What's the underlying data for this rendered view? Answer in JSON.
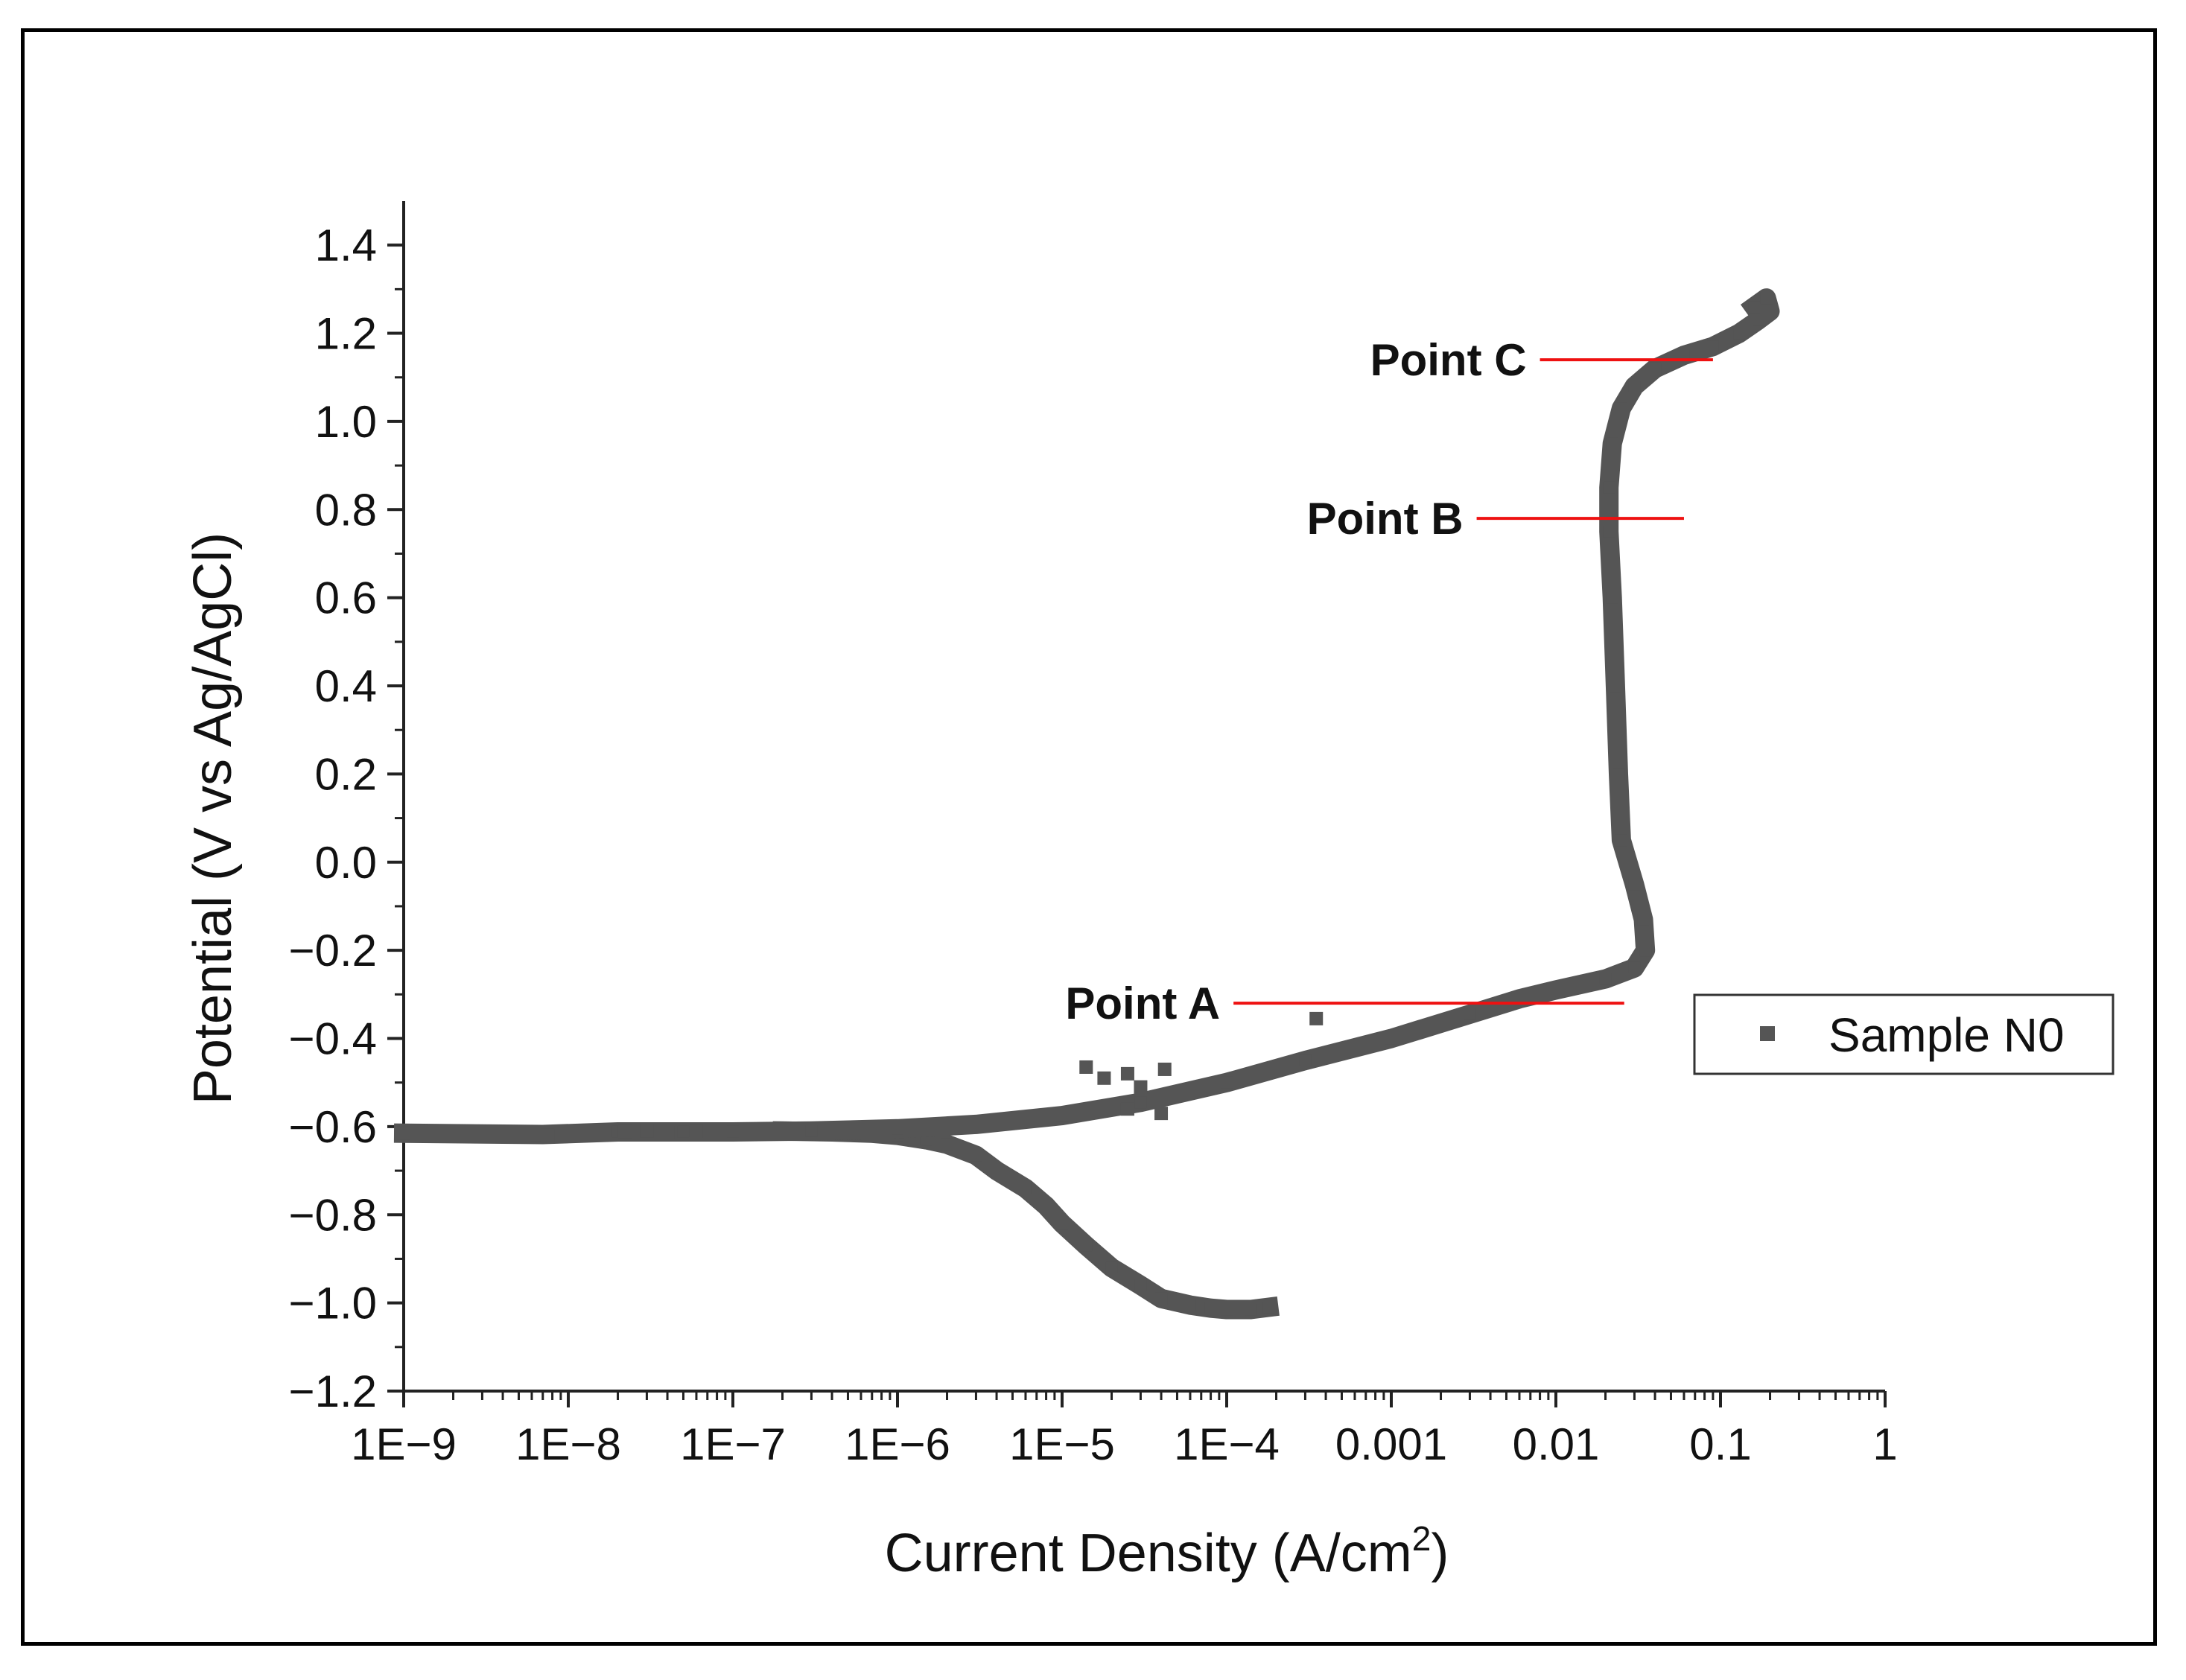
{
  "chart_data": {
    "type": "scatter",
    "xlabel": "Current Density (A/cm",
    "xlabel_sup": "2",
    "xlabel_end": ")",
    "ylabel": "Potential (V vs Ag/AgCl)",
    "x_scale": "log",
    "xlim": [
      1e-09,
      1
    ],
    "ylim": [
      -1.2,
      1.5
    ],
    "x_ticks": [
      1e-09,
      1e-08,
      1e-07,
      1e-06,
      1e-05,
      0.0001,
      0.001,
      0.01,
      0.1,
      1
    ],
    "x_tick_labels": [
      "1E−9",
      "1E−8",
      "1E−7",
      "1E−6",
      "1E−5",
      "1E−4",
      "0.001",
      "0.01",
      "0.1",
      "1"
    ],
    "y_ticks": [
      -1.2,
      -1.0,
      -0.8,
      -0.6,
      -0.4,
      -0.2,
      0.0,
      0.2,
      0.4,
      0.6,
      0.8,
      1.0,
      1.2,
      1.4
    ],
    "y_tick_labels": [
      "−1.2",
      "−1.0",
      "−0.8",
      "−0.6",
      "−0.4",
      "−0.2",
      "0.0",
      "0.2",
      "0.4",
      "0.6",
      "0.8",
      "1.0",
      "1.2",
      "1.4"
    ],
    "grid": false,
    "legend_position": "right",
    "series": [
      {
        "name": "Sample N0",
        "color": "#555555",
        "marker": "square",
        "cathodic_branch": [
          [
            2e-07,
            -0.61
          ],
          [
            4e-07,
            -0.612
          ],
          [
            7e-07,
            -0.615
          ],
          [
            1e-06,
            -0.62
          ],
          [
            1.5e-06,
            -0.63
          ],
          [
            2e-06,
            -0.64
          ],
          [
            3e-06,
            -0.665
          ],
          [
            4e-06,
            -0.7
          ],
          [
            6e-06,
            -0.74
          ],
          [
            8e-06,
            -0.78
          ],
          [
            1e-05,
            -0.82
          ],
          [
            1.4e-05,
            -0.87
          ],
          [
            2e-05,
            -0.92
          ],
          [
            3e-05,
            -0.96
          ],
          [
            4e-05,
            -0.99
          ],
          [
            6e-05,
            -1.005
          ],
          [
            8e-05,
            -1.012
          ],
          [
            0.0001,
            -1.015
          ],
          [
            0.00014,
            -1.015
          ],
          [
            0.00018,
            -1.01
          ]
        ],
        "anodic_branch": [
          [
            1e-09,
            -0.615
          ],
          [
            7e-09,
            -0.618
          ],
          [
            2e-08,
            -0.612
          ],
          [
            5e-08,
            -0.612
          ],
          [
            1e-07,
            -0.612
          ],
          [
            3e-07,
            -0.61
          ],
          [
            1e-06,
            -0.605
          ],
          [
            3e-06,
            -0.595
          ],
          [
            1e-05,
            -0.575
          ],
          [
            3e-05,
            -0.545
          ],
          [
            0.0001,
            -0.5
          ],
          [
            0.0003,
            -0.45
          ],
          [
            0.001,
            -0.4
          ],
          [
            0.003,
            -0.345
          ],
          [
            0.006,
            -0.31
          ],
          [
            0.01,
            -0.29
          ],
          [
            0.02,
            -0.265
          ],
          [
            0.03,
            -0.24
          ],
          [
            0.035,
            -0.2
          ],
          [
            0.034,
            -0.13
          ],
          [
            0.03,
            -0.05
          ],
          [
            0.025,
            0.05
          ],
          [
            0.024,
            0.2
          ],
          [
            0.023,
            0.4
          ],
          [
            0.022,
            0.6
          ],
          [
            0.021,
            0.75
          ],
          [
            0.021,
            0.85
          ],
          [
            0.022,
            0.95
          ],
          [
            0.025,
            1.03
          ],
          [
            0.03,
            1.08
          ],
          [
            0.04,
            1.12
          ],
          [
            0.06,
            1.15
          ],
          [
            0.09,
            1.17
          ],
          [
            0.13,
            1.2
          ],
          [
            0.17,
            1.23
          ],
          [
            0.2,
            1.25
          ],
          [
            0.19,
            1.28
          ],
          [
            0.16,
            1.26
          ]
        ],
        "scatter_points": [
          [
            1e-09,
            -0.615
          ],
          [
            6.5e-09,
            -0.618
          ],
          [
            7.5e-09,
            -0.62
          ],
          [
            2.2e-08,
            -0.612
          ],
          [
            3e-08,
            -0.61
          ],
          [
            4e-08,
            -0.613
          ],
          [
            6e-08,
            -0.611
          ],
          [
            1.4e-05,
            -0.465
          ],
          [
            1.8e-05,
            -0.49
          ],
          [
            2.5e-05,
            -0.48
          ],
          [
            3e-05,
            -0.51
          ],
          [
            4.2e-05,
            -0.47
          ],
          [
            0.00035,
            -0.355
          ],
          [
            2.5e-05,
            -0.56
          ],
          [
            4e-05,
            -0.57
          ]
        ]
      }
    ],
    "annotations": [
      {
        "label": "Point A",
        "y": -0.32,
        "x_start": 0.00011,
        "x_end": 0.026
      },
      {
        "label": "Point B",
        "y": 0.78,
        "x_start": 0.0033,
        "x_end": 0.06
      },
      {
        "label": "Point C",
        "y": 1.14,
        "x_start": 0.008,
        "x_end": 0.09
      }
    ],
    "annotation_color": "#ee1111"
  }
}
